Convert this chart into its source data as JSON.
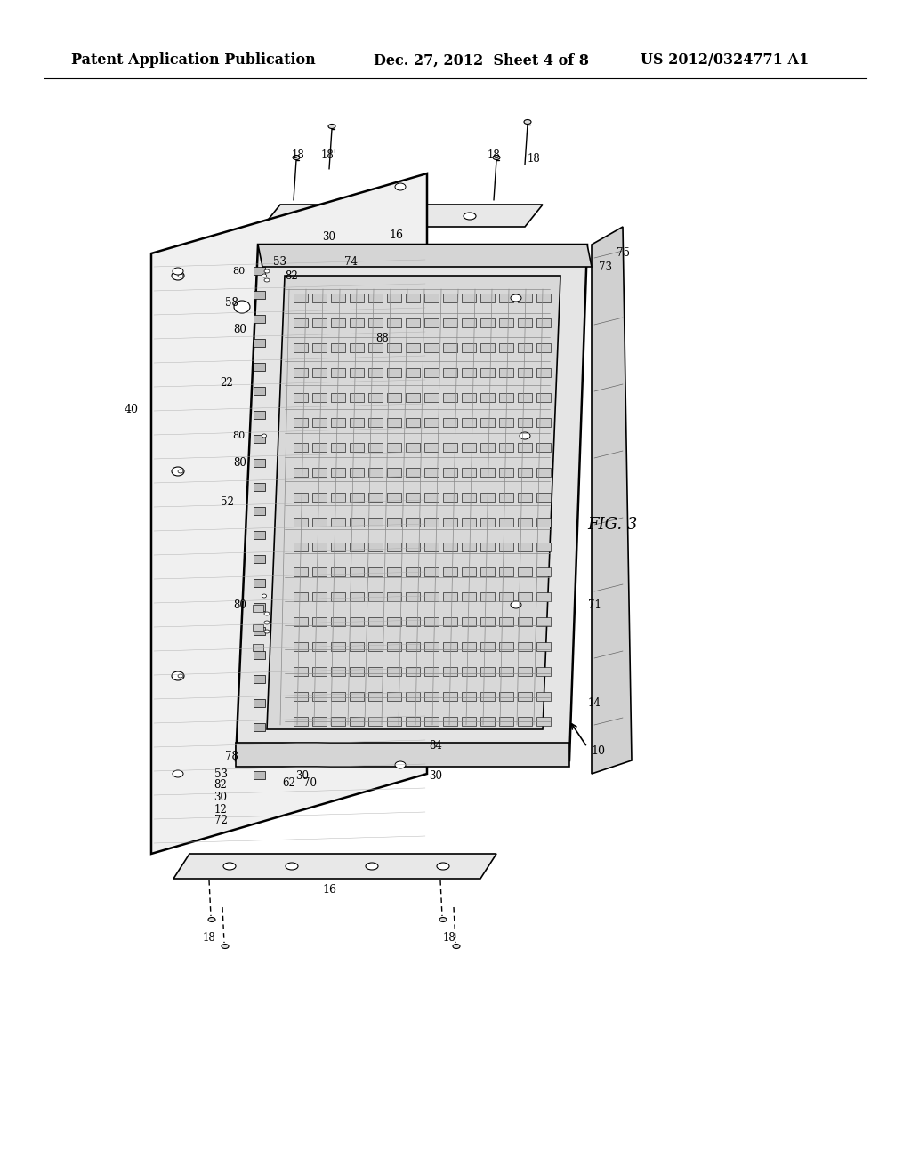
{
  "background_color": "#ffffff",
  "header_left": "Patent Application Publication",
  "header_center": "Dec. 27, 2012  Sheet 4 of 8",
  "header_right": "US 2012/0324771 A1",
  "fig_label": "FIG. 3",
  "arrow_label": "10",
  "title_fontsize": 13,
  "header_fontsize": 11.5
}
